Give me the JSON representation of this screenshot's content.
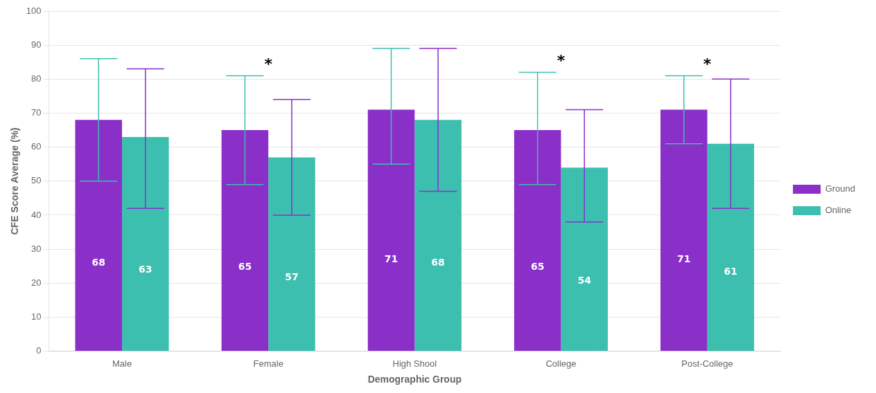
{
  "chart_data": {
    "type": "bar",
    "categories": [
      "Male",
      "Female",
      "High Shool",
      "College",
      "Post-College"
    ],
    "series": [
      {
        "name": "Ground",
        "color": "#8B2FC9",
        "values": [
          68,
          65,
          71,
          65,
          71
        ],
        "errors_up": [
          18,
          16,
          18,
          17,
          10
        ],
        "errors_down": [
          18,
          16,
          16,
          16,
          10
        ]
      },
      {
        "name": "Online",
        "color": "#3DBFB0",
        "values": [
          63,
          57,
          68,
          54,
          61
        ],
        "errors_up": [
          20,
          17,
          21,
          17,
          19
        ],
        "errors_down": [
          21,
          17,
          21,
          16,
          19
        ]
      }
    ],
    "xlabel": "Demographic Group",
    "ylabel": "CFE Score Average (%)",
    "ylim": [
      0,
      100
    ],
    "yticks": [
      0,
      10,
      20,
      30,
      40,
      50,
      60,
      70,
      80,
      90,
      100
    ],
    "grid": true,
    "legend": "right",
    "data_labels": true,
    "annotations": [
      {
        "text": "*",
        "category": "Female"
      },
      {
        "text": "*",
        "category": "College"
      },
      {
        "text": "*",
        "category": "Post-College"
      }
    ]
  }
}
